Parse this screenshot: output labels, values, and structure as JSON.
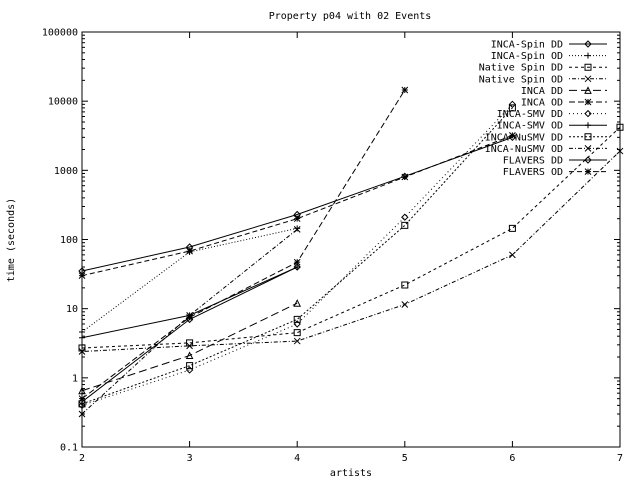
{
  "chart_data": {
    "type": "line",
    "title": "Property p04 with 02 Events",
    "xlabel": "artists",
    "ylabel": "time (seconds)",
    "xlim": [
      2,
      7
    ],
    "ylim": [
      0.1,
      100000
    ],
    "yscale": "log",
    "x_ticks": [
      2,
      3,
      4,
      5,
      6,
      7
    ],
    "x_tick_labels": [
      "2",
      "3",
      "4",
      "5",
      "6",
      "7"
    ],
    "y_ticks": [
      0.1,
      1,
      10,
      100,
      1000,
      10000,
      100000
    ],
    "y_tick_labels": [
      "0.1",
      "1",
      "10",
      "100",
      "1000",
      "10000",
      "100000"
    ],
    "grid": false,
    "legend": "top-right",
    "series": [
      {
        "name": "INCA-Spin DD",
        "dash": "",
        "marker": "diamond",
        "points": [
          [
            2,
            0.45
          ],
          [
            3,
            7
          ],
          [
            4,
            40
          ]
        ]
      },
      {
        "name": "INCA-Spin OD",
        "dash": "1,2",
        "marker": "plus",
        "points": [
          [
            2,
            4.6
          ],
          [
            3,
            66
          ],
          [
            4,
            145
          ]
        ]
      },
      {
        "name": "Native Spin DD",
        "dash": "3,3",
        "marker": "square",
        "points": [
          [
            2,
            2.7
          ],
          [
            3,
            3.2
          ],
          [
            4,
            4.5
          ],
          [
            5,
            22
          ],
          [
            6,
            145
          ],
          [
            7,
            4200
          ]
        ]
      },
      {
        "name": "Native Spin OD",
        "dash": "1,2,4,2",
        "marker": "cross",
        "points": [
          [
            2,
            2.4
          ],
          [
            3,
            2.9
          ],
          [
            4,
            3.4
          ],
          [
            5,
            11.5
          ],
          [
            6,
            60
          ],
          [
            7,
            1900
          ]
        ]
      },
      {
        "name": "INCA DD",
        "dash": "8,4",
        "marker": "triangle",
        "points": [
          [
            2,
            0.65
          ],
          [
            3,
            2.1
          ],
          [
            4,
            12
          ]
        ]
      },
      {
        "name": "INCA OD",
        "dash": "6,3",
        "marker": "star",
        "points": [
          [
            2,
            0.5
          ],
          [
            3,
            7.5
          ],
          [
            4,
            47
          ],
          [
            5,
            14500
          ]
        ]
      },
      {
        "name": "INCA-SMV DD",
        "dash": "1,3",
        "marker": "diamond",
        "points": [
          [
            2,
            0.4
          ],
          [
            3,
            1.3
          ],
          [
            4,
            6
          ],
          [
            5,
            210
          ],
          [
            6,
            9000
          ]
        ]
      },
      {
        "name": "INCA-SMV OD",
        "dash": "",
        "marker": "plus",
        "points": [
          [
            2,
            3.8
          ],
          [
            3,
            8
          ],
          [
            4,
            40
          ]
        ]
      },
      {
        "name": "INCA-NuSMV DD",
        "dash": "2,2",
        "marker": "square",
        "points": [
          [
            2,
            0.42
          ],
          [
            3,
            1.5
          ],
          [
            4,
            7
          ],
          [
            5,
            160
          ],
          [
            6,
            8000
          ]
        ]
      },
      {
        "name": "INCA-NuSMV OD",
        "dash": "4,2,1,2",
        "marker": "cross",
        "points": [
          [
            2,
            0.3
          ],
          [
            3,
            8
          ],
          [
            4,
            140
          ]
        ]
      },
      {
        "name": "FLAVERS DD",
        "dash": "",
        "marker": "diamond",
        "points": [
          [
            2,
            35
          ],
          [
            3,
            78
          ],
          [
            4,
            230
          ],
          [
            5,
            820
          ],
          [
            6,
            3000
          ]
        ]
      },
      {
        "name": "FLAVERS OD",
        "dash": "5,3",
        "marker": "star",
        "points": [
          [
            2,
            30
          ],
          [
            3,
            68
          ],
          [
            4,
            200
          ],
          [
            5,
            800
          ],
          [
            6,
            3200
          ]
        ]
      }
    ]
  }
}
